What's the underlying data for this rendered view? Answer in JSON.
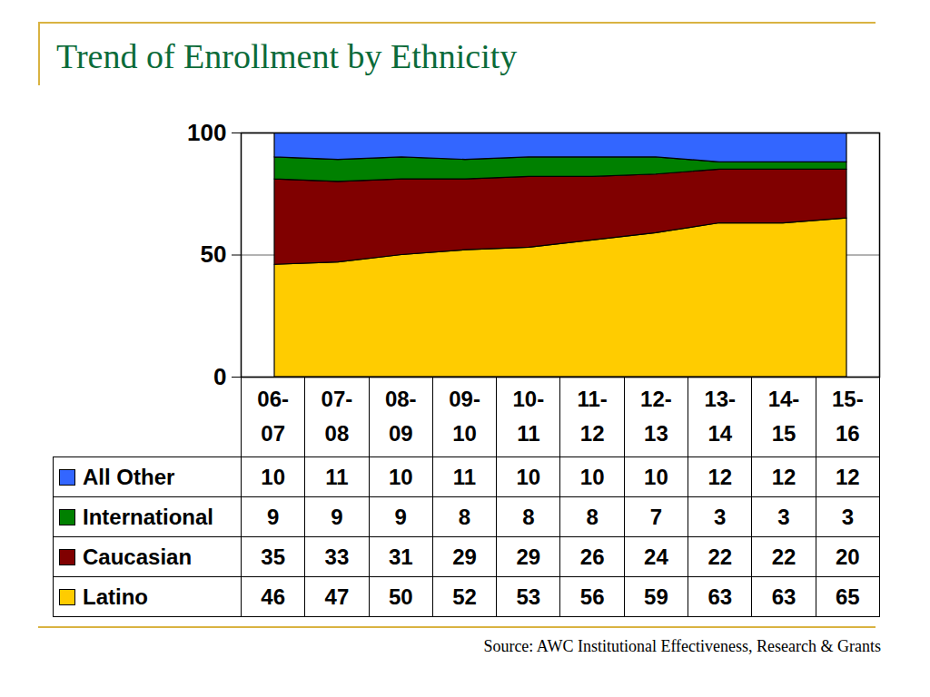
{
  "chart_data": {
    "type": "area",
    "title": "Trend of Enrollment by Ethnicity",
    "source": "Source:  AWC Institutional Effectiveness, Research & Grants",
    "categories": [
      "06-07",
      "07-08",
      "08-09",
      "09-10",
      "10-11",
      "11-12",
      "12-13",
      "13-14",
      "14-15",
      "15-16"
    ],
    "series": [
      {
        "name": "Latino",
        "color": "#ffcc00",
        "values": [
          46,
          47,
          50,
          52,
          53,
          56,
          59,
          63,
          63,
          65
        ]
      },
      {
        "name": "Caucasian",
        "color": "#800000",
        "values": [
          35,
          33,
          31,
          29,
          29,
          26,
          24,
          22,
          22,
          20
        ]
      },
      {
        "name": "International",
        "color": "#008000",
        "values": [
          9,
          9,
          9,
          8,
          8,
          8,
          7,
          3,
          3,
          3
        ]
      },
      {
        "name": "All Other",
        "color": "#3366ff",
        "values": [
          10,
          11,
          10,
          11,
          10,
          10,
          10,
          12,
          12,
          12
        ]
      }
    ],
    "ylim": [
      0,
      100
    ],
    "yticks": [
      0,
      50,
      100
    ],
    "grid": true,
    "stacked": true,
    "data_labels": true,
    "legend": "left"
  }
}
